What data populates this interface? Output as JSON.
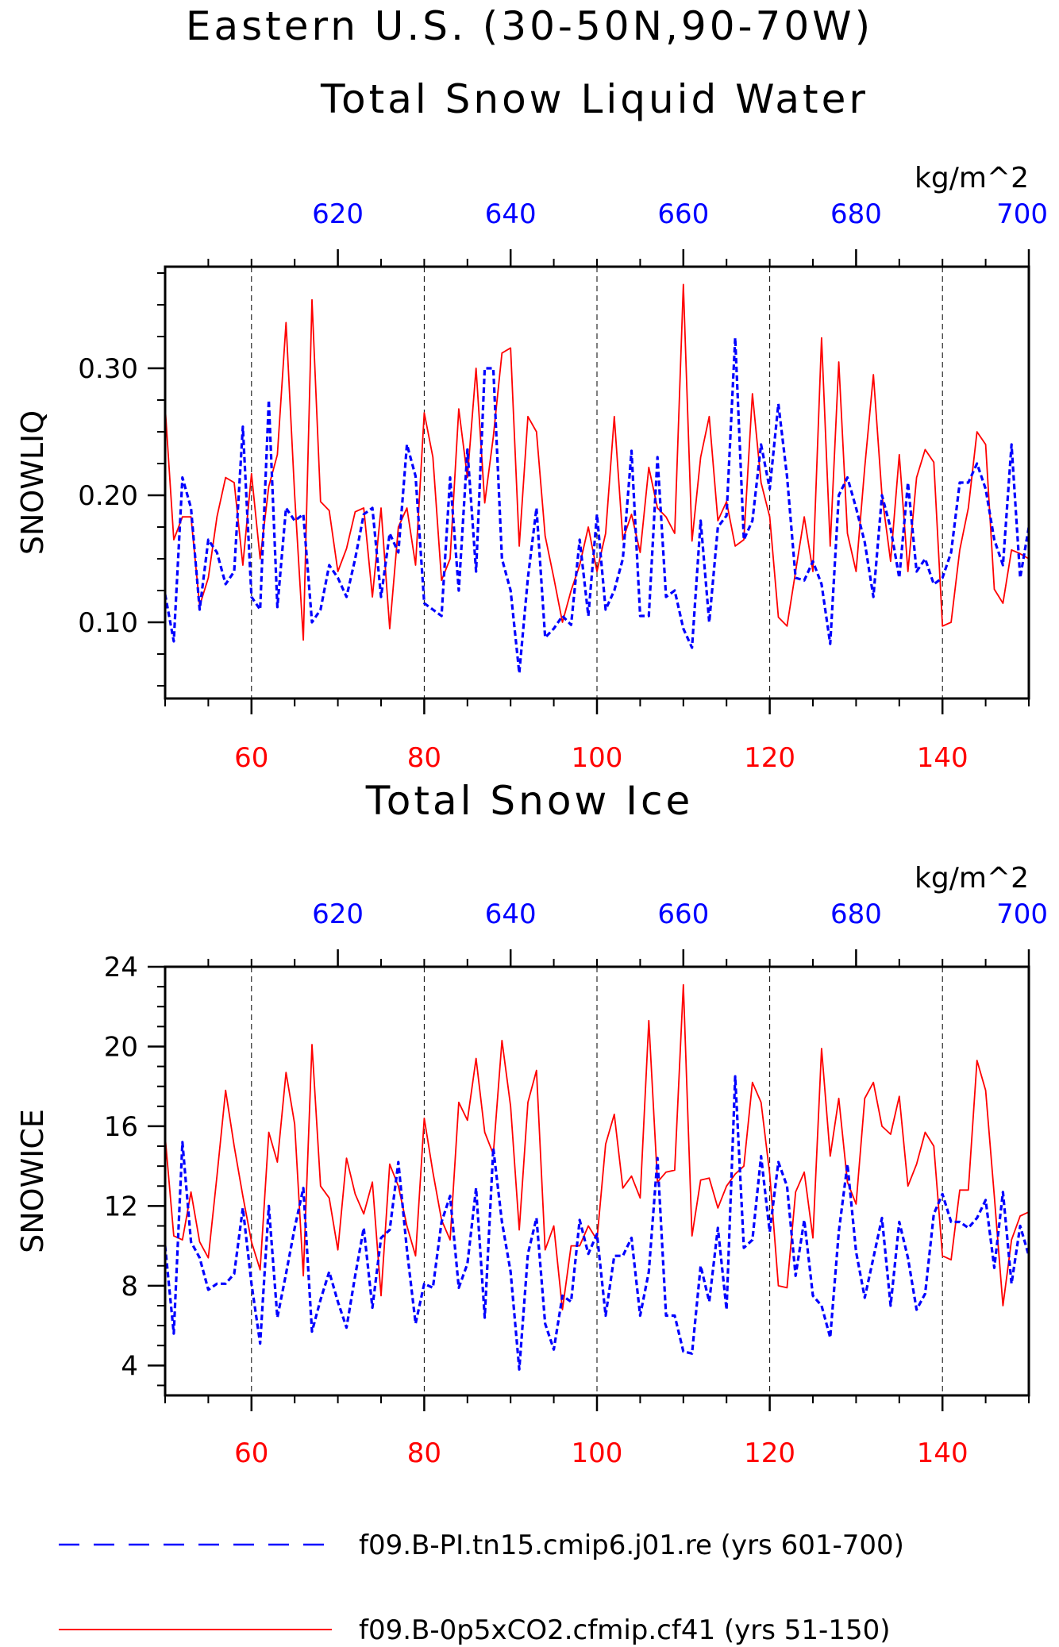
{
  "titles": {
    "main": "Eastern U.S. (30-50N,90-70W)",
    "panel1": "Total Snow Liquid Water",
    "panel2": "Total Snow Ice"
  },
  "colors": {
    "red_series": "#ff0000",
    "blue_series": "#0000ff",
    "axis": "#000000"
  },
  "legend": {
    "position": "bottom",
    "entries": [
      {
        "label": "f09.B-PI.tn15.cmip6.j01.re (yrs 601-700)",
        "color": "#0000ff",
        "style": "dashed"
      },
      {
        "label": "f09.B-0p5xCO2.cfmip.cf41 (yrs 51-150)",
        "color": "#ff0000",
        "style": "solid"
      }
    ]
  },
  "chart_data": [
    {
      "type": "line",
      "title": "Total Snow Liquid Water",
      "ylabel": "SNOWLIQ",
      "units": "kg/m^2",
      "ylim": [
        0.04,
        0.38
      ],
      "yticks": [
        0.1,
        0.2,
        0.3
      ],
      "ytick_labels": [
        "0.10",
        "0.20",
        "0.30"
      ],
      "x_bottom": {
        "range": [
          50,
          150
        ],
        "ticks": [
          60,
          80,
          100,
          120,
          140
        ],
        "tick_labels": [
          "60",
          "80",
          "100",
          "120",
          "140"
        ],
        "color": "#ff0000"
      },
      "x_top": {
        "range": [
          600,
          700
        ],
        "ticks": [
          620,
          640,
          660,
          680,
          700
        ],
        "tick_labels": [
          "620",
          "640",
          "660",
          "680",
          "700"
        ],
        "color": "#0000ff"
      },
      "grid": "vertical dashed at major x ticks",
      "series": [
        {
          "name": "f09.B-0p5xCO2.cfmip.cf41 (yrs 51-150)",
          "axis": "bottom",
          "color": "#ff0000",
          "style": "solid",
          "x_start": 50,
          "values": [
            0.27,
            0.165,
            0.183,
            0.183,
            0.113,
            0.135,
            0.183,
            0.214,
            0.21,
            0.145,
            0.217,
            0.15,
            0.207,
            0.232,
            0.336,
            0.2,
            0.086,
            0.354,
            0.195,
            0.188,
            0.14,
            0.158,
            0.187,
            0.19,
            0.12,
            0.19,
            0.095,
            0.175,
            0.19,
            0.145,
            0.265,
            0.23,
            0.133,
            0.15,
            0.268,
            0.214,
            0.3,
            0.194,
            0.246,
            0.312,
            0.316,
            0.16,
            0.262,
            0.25,
            0.168,
            0.135,
            0.1,
            0.125,
            0.145,
            0.175,
            0.14,
            0.17,
            0.262,
            0.165,
            0.185,
            0.155,
            0.222,
            0.19,
            0.183,
            0.17,
            0.366,
            0.164,
            0.23,
            0.262,
            0.18,
            0.195,
            0.16,
            0.165,
            0.28,
            0.21,
            0.183,
            0.104,
            0.097,
            0.14,
            0.183,
            0.14,
            0.324,
            0.16,
            0.305,
            0.17,
            0.14,
            0.222,
            0.295,
            0.2,
            0.148,
            0.232,
            0.14,
            0.214,
            0.236,
            0.226,
            0.097,
            0.1,
            0.157,
            0.19,
            0.25,
            0.24,
            0.126,
            0.115,
            0.157,
            0.154,
            0.15
          ]
        },
        {
          "name": "f09.B-PI.tn15.cmip6.j01.re (yrs 601-700)",
          "axis": "top",
          "color": "#0000ff",
          "style": "dashed",
          "x_start": 600,
          "values": [
            0.122,
            0.085,
            0.214,
            0.19,
            0.11,
            0.165,
            0.155,
            0.13,
            0.14,
            0.254,
            0.12,
            0.11,
            0.275,
            0.112,
            0.19,
            0.18,
            0.185,
            0.1,
            0.11,
            0.145,
            0.135,
            0.12,
            0.15,
            0.185,
            0.19,
            0.12,
            0.17,
            0.155,
            0.24,
            0.215,
            0.115,
            0.11,
            0.105,
            0.214,
            0.125,
            0.236,
            0.14,
            0.3,
            0.3,
            0.15,
            0.125,
            0.06,
            0.135,
            0.19,
            0.088,
            0.095,
            0.105,
            0.098,
            0.165,
            0.105,
            0.185,
            0.11,
            0.125,
            0.15,
            0.235,
            0.105,
            0.105,
            0.23,
            0.12,
            0.125,
            0.095,
            0.08,
            0.18,
            0.1,
            0.175,
            0.184,
            0.324,
            0.165,
            0.18,
            0.24,
            0.205,
            0.272,
            0.215,
            0.135,
            0.133,
            0.148,
            0.13,
            0.083,
            0.2,
            0.214,
            0.19,
            0.163,
            0.12,
            0.2,
            0.174,
            0.135,
            0.21,
            0.14,
            0.15,
            0.13,
            0.135,
            0.155,
            0.21,
            0.21,
            0.225,
            0.205,
            0.165,
            0.145,
            0.24,
            0.135,
            0.175
          ]
        }
      ]
    },
    {
      "type": "line",
      "title": "Total Snow Ice",
      "ylabel": "SNOWICE",
      "units": "kg/m^2",
      "ylim": [
        2.5,
        24
      ],
      "yticks": [
        4,
        8,
        12,
        16,
        20,
        24
      ],
      "ytick_labels": [
        "4",
        "8",
        "12",
        "16",
        "20",
        "24"
      ],
      "x_bottom": {
        "range": [
          50,
          150
        ],
        "ticks": [
          60,
          80,
          100,
          120,
          140
        ],
        "tick_labels": [
          "60",
          "80",
          "100",
          "120",
          "140"
        ],
        "color": "#ff0000"
      },
      "x_top": {
        "range": [
          600,
          700
        ],
        "ticks": [
          620,
          640,
          660,
          680,
          700
        ],
        "tick_labels": [
          "620",
          "640",
          "660",
          "680",
          "700"
        ],
        "color": "#0000ff"
      },
      "grid": "vertical dashed at major x ticks",
      "series": [
        {
          "name": "f09.B-0p5xCO2.cfmip.cf41 (yrs 51-150)",
          "axis": "bottom",
          "color": "#ff0000",
          "style": "solid",
          "x_start": 50,
          "values": [
            15.5,
            10.5,
            10.3,
            12.7,
            10.2,
            9.4,
            13.5,
            17.8,
            15.0,
            12.5,
            10.2,
            8.8,
            15.7,
            14.2,
            18.7,
            16.1,
            8.5,
            20.1,
            13.0,
            12.4,
            9.8,
            14.4,
            12.6,
            11.6,
            13.2,
            7.5,
            14.1,
            13.0,
            11.0,
            9.5,
            16.4,
            13.7,
            11.3,
            10.3,
            17.2,
            16.3,
            19.4,
            15.7,
            14.6,
            20.3,
            17.0,
            10.8,
            17.2,
            18.8,
            9.8,
            11.0,
            6.8,
            10.0,
            10.0,
            11.0,
            10.3,
            15.1,
            16.6,
            12.9,
            13.5,
            12.4,
            21.3,
            13.2,
            13.7,
            13.8,
            23.1,
            10.5,
            13.3,
            13.4,
            11.9,
            13.0,
            13.6,
            14.0,
            18.2,
            17.2,
            13.6,
            8.0,
            7.9,
            12.7,
            13.7,
            10.4,
            19.9,
            14.5,
            17.4,
            13.2,
            12.1,
            17.4,
            18.2,
            16.0,
            15.6,
            17.5,
            13.0,
            14.1,
            15.7,
            15.0,
            9.5,
            9.3,
            12.8,
            12.8,
            19.3,
            17.8,
            12.5,
            7.0,
            10.3,
            11.5,
            11.7
          ]
        },
        {
          "name": "f09.B-PI.tn15.cmip6.j01.re (yrs 601-700)",
          "axis": "top",
          "color": "#0000ff",
          "style": "dashed",
          "x_start": 600,
          "values": [
            10.0,
            5.6,
            15.2,
            10.2,
            9.4,
            7.8,
            8.1,
            8.1,
            8.6,
            11.9,
            8.1,
            5.1,
            12.0,
            6.4,
            8.6,
            10.9,
            12.9,
            5.7,
            7.3,
            8.7,
            7.2,
            5.9,
            8.5,
            10.9,
            6.9,
            10.4,
            10.8,
            14.2,
            9.8,
            6.1,
            8.1,
            7.9,
            11.2,
            12.5,
            7.9,
            9.1,
            12.9,
            6.4,
            14.9,
            11.2,
            8.7,
            3.8,
            9.6,
            11.4,
            6.1,
            4.8,
            7.5,
            7.2,
            11.3,
            9.6,
            10.6,
            6.5,
            9.5,
            9.5,
            10.4,
            6.5,
            8.7,
            14.4,
            6.5,
            6.5,
            4.7,
            4.6,
            9.0,
            7.2,
            10.9,
            6.8,
            18.5,
            9.9,
            10.3,
            14.5,
            10.7,
            14.2,
            13.0,
            8.5,
            11.3,
            7.5,
            7.0,
            5.4,
            10.7,
            14.1,
            9.7,
            7.4,
            9.4,
            11.4,
            7.0,
            11.2,
            9.4,
            6.8,
            7.6,
            11.6,
            12.6,
            11.2,
            11.2,
            10.9,
            11.4,
            12.3,
            8.9,
            12.7,
            8.1,
            11.0,
            9.5
          ]
        }
      ]
    }
  ]
}
